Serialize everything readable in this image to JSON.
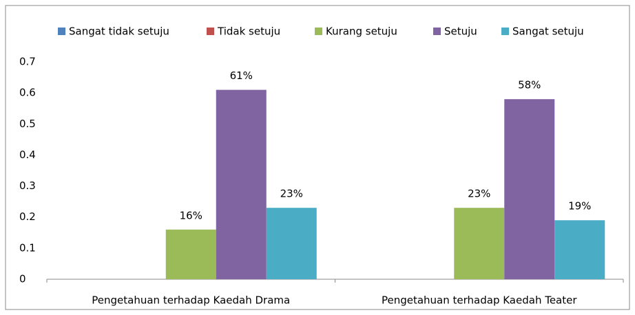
{
  "chart_data": {
    "type": "bar",
    "categories": [
      "Pengetahuan terhadap Kaedah Drama",
      "Pengetahuan terhadap Kaedah Teater"
    ],
    "series": [
      {
        "name": "Sangat tidak setuju",
        "color": "#4f81bd",
        "values": [
          0,
          0
        ],
        "value_labels": [
          null,
          null
        ]
      },
      {
        "name": "Tidak setuju",
        "color": "#c0504d",
        "values": [
          0,
          0
        ],
        "value_labels": [
          null,
          null
        ]
      },
      {
        "name": "Kurang setuju",
        "color": "#9bbb59",
        "values": [
          0.16,
          0.23
        ],
        "value_labels": [
          "16%",
          "23%"
        ]
      },
      {
        "name": "Setuju",
        "color": "#8064a2",
        "values": [
          0.61,
          0.58
        ],
        "value_labels": [
          "61%",
          "58%"
        ]
      },
      {
        "name": "Sangat setuju",
        "color": "#4bacc6",
        "values": [
          0.23,
          0.19
        ],
        "value_labels": [
          "23%",
          "19%"
        ]
      }
    ],
    "ylim": [
      0,
      0.7
    ],
    "yticks": [
      0,
      0.1,
      0.2,
      0.3,
      0.4,
      0.5,
      0.6,
      0.7
    ],
    "legend": "top",
    "grid": false
  }
}
